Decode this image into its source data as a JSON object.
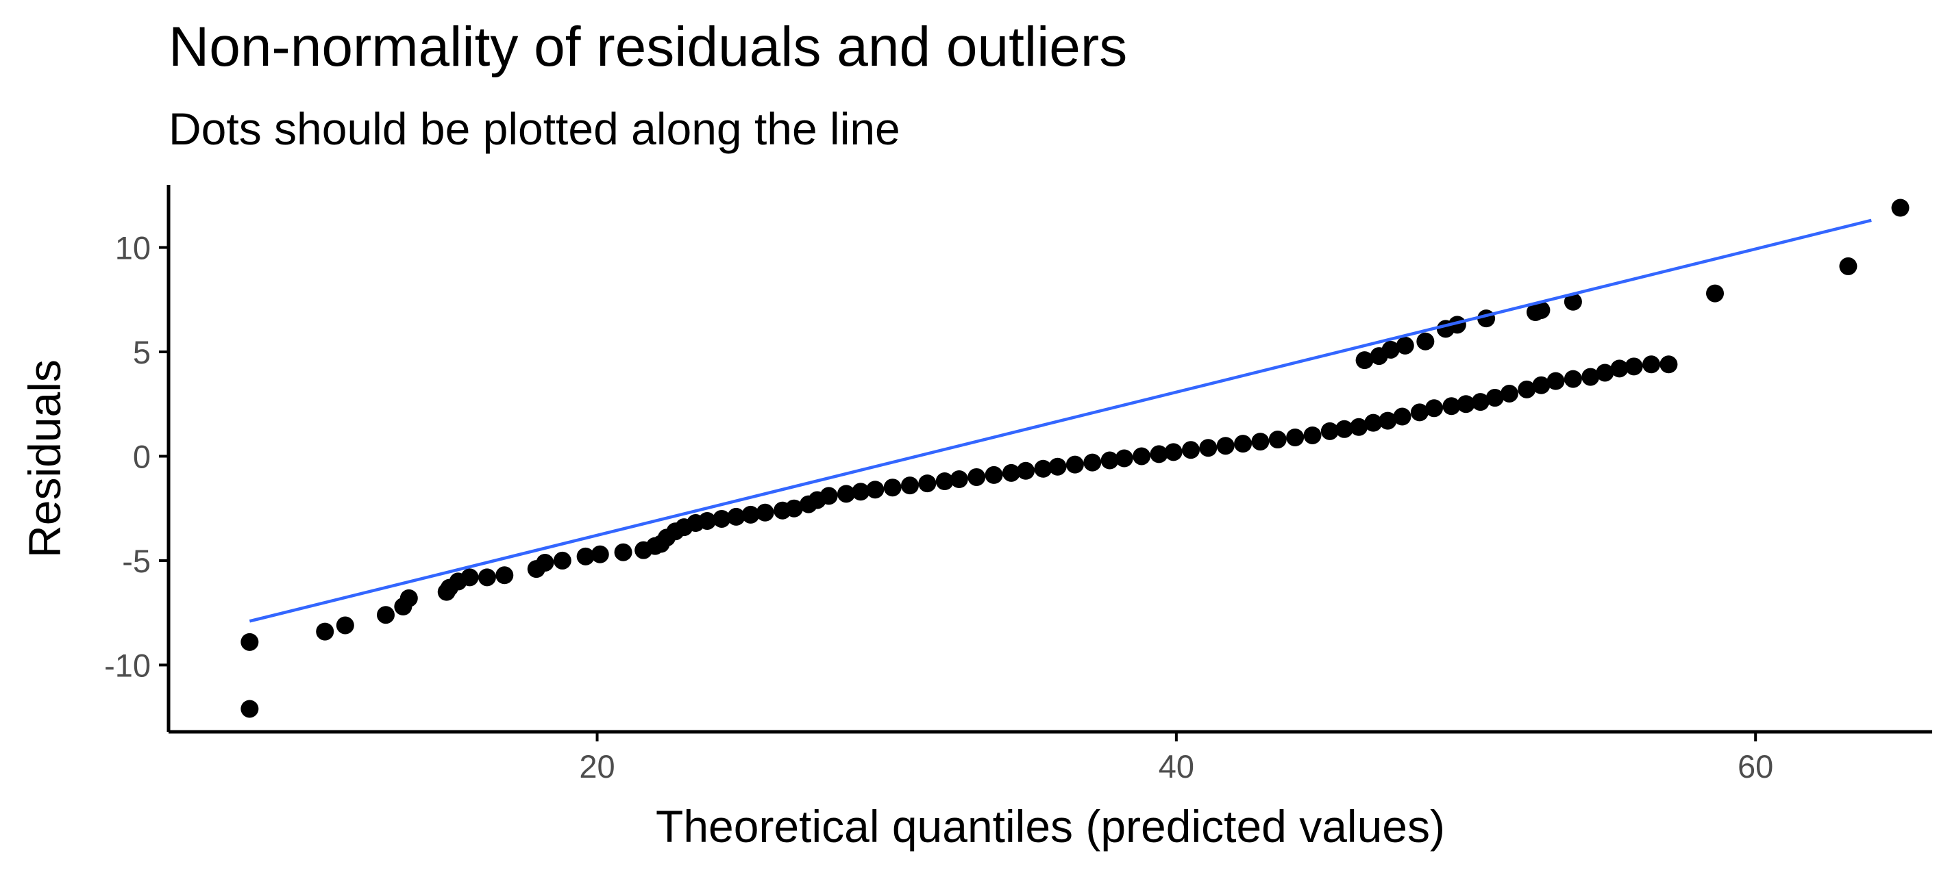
{
  "chart_data": {
    "type": "scatter",
    "title": "Non-normality of residuals and outliers",
    "subtitle": "Dots should be plotted along the line",
    "xlabel": "Theoretical quantiles (predicted values)",
    "ylabel": "Residuals",
    "xlim": [
      5.2,
      66.1
    ],
    "ylim": [
      -13.2,
      13.0
    ],
    "x_ticks": [
      20,
      40,
      60
    ],
    "x_tick_labels": [
      "20",
      "40",
      "60"
    ],
    "y_ticks": [
      10,
      5,
      0,
      -5,
      -10
    ],
    "y_tick_labels": [
      "10",
      "5",
      "0",
      "-5",
      "-10"
    ],
    "grid": false,
    "reference_line": {
      "x": [
        8.0,
        64.0
      ],
      "y": [
        -7.9,
        11.3
      ],
      "color": "#3366ff"
    },
    "point_color": "#000000",
    "points": [
      [
        8.0,
        -12.1
      ],
      [
        8.0,
        -8.9
      ],
      [
        10.6,
        -8.4
      ],
      [
        11.3,
        -8.1
      ],
      [
        12.7,
        -7.6
      ],
      [
        13.3,
        -7.2
      ],
      [
        13.5,
        -6.8
      ],
      [
        14.8,
        -6.5
      ],
      [
        14.9,
        -6.3
      ],
      [
        15.2,
        -6.0
      ],
      [
        15.6,
        -5.8
      ],
      [
        16.2,
        -5.8
      ],
      [
        16.8,
        -5.7
      ],
      [
        17.9,
        -5.4
      ],
      [
        18.2,
        -5.1
      ],
      [
        18.8,
        -5.0
      ],
      [
        19.6,
        -4.8
      ],
      [
        20.1,
        -4.7
      ],
      [
        20.9,
        -4.6
      ],
      [
        21.6,
        -4.5
      ],
      [
        22.0,
        -4.3
      ],
      [
        22.2,
        -4.2
      ],
      [
        22.4,
        -3.9
      ],
      [
        22.7,
        -3.6
      ],
      [
        23.0,
        -3.4
      ],
      [
        23.4,
        -3.2
      ],
      [
        23.8,
        -3.1
      ],
      [
        24.3,
        -3.0
      ],
      [
        24.8,
        -2.9
      ],
      [
        25.3,
        -2.8
      ],
      [
        25.8,
        -2.7
      ],
      [
        26.4,
        -2.6
      ],
      [
        26.8,
        -2.5
      ],
      [
        27.3,
        -2.3
      ],
      [
        27.6,
        -2.1
      ],
      [
        28.0,
        -1.9
      ],
      [
        28.6,
        -1.8
      ],
      [
        29.1,
        -1.7
      ],
      [
        29.6,
        -1.6
      ],
      [
        30.2,
        -1.5
      ],
      [
        30.8,
        -1.4
      ],
      [
        31.4,
        -1.3
      ],
      [
        32.0,
        -1.2
      ],
      [
        32.5,
        -1.1
      ],
      [
        33.1,
        -1.0
      ],
      [
        33.7,
        -0.9
      ],
      [
        34.3,
        -0.8
      ],
      [
        34.8,
        -0.7
      ],
      [
        35.4,
        -0.6
      ],
      [
        35.9,
        -0.5
      ],
      [
        36.5,
        -0.4
      ],
      [
        37.1,
        -0.3
      ],
      [
        37.7,
        -0.2
      ],
      [
        38.2,
        -0.1
      ],
      [
        38.8,
        0.0
      ],
      [
        39.4,
        0.1
      ],
      [
        39.9,
        0.2
      ],
      [
        40.5,
        0.3
      ],
      [
        41.1,
        0.4
      ],
      [
        41.7,
        0.5
      ],
      [
        42.3,
        0.6
      ],
      [
        42.9,
        0.7
      ],
      [
        43.5,
        0.8
      ],
      [
        44.1,
        0.9
      ],
      [
        44.7,
        1.0
      ],
      [
        45.3,
        1.2
      ],
      [
        45.8,
        1.3
      ],
      [
        46.3,
        1.4
      ],
      [
        46.8,
        1.6
      ],
      [
        47.3,
        1.7
      ],
      [
        47.8,
        1.9
      ],
      [
        48.4,
        2.1
      ],
      [
        48.9,
        2.3
      ],
      [
        49.5,
        2.4
      ],
      [
        50.0,
        2.5
      ],
      [
        50.5,
        2.6
      ],
      [
        51.0,
        2.8
      ],
      [
        51.5,
        3.0
      ],
      [
        52.1,
        3.2
      ],
      [
        52.6,
        3.4
      ],
      [
        53.1,
        3.6
      ],
      [
        53.7,
        3.7
      ],
      [
        54.3,
        3.8
      ],
      [
        54.8,
        4.0
      ],
      [
        55.3,
        4.2
      ],
      [
        55.8,
        4.3
      ],
      [
        56.4,
        4.4
      ],
      [
        57.0,
        4.4
      ],
      [
        46.5,
        4.6
      ],
      [
        47.0,
        4.8
      ],
      [
        47.4,
        5.1
      ],
      [
        47.9,
        5.3
      ],
      [
        48.6,
        5.5
      ],
      [
        49.3,
        6.1
      ],
      [
        49.7,
        6.3
      ],
      [
        50.7,
        6.6
      ],
      [
        52.4,
        6.9
      ],
      [
        52.6,
        7.0
      ],
      [
        53.7,
        7.4
      ],
      [
        58.6,
        7.8
      ],
      [
        63.2,
        9.1
      ],
      [
        65.0,
        11.9
      ]
    ]
  }
}
